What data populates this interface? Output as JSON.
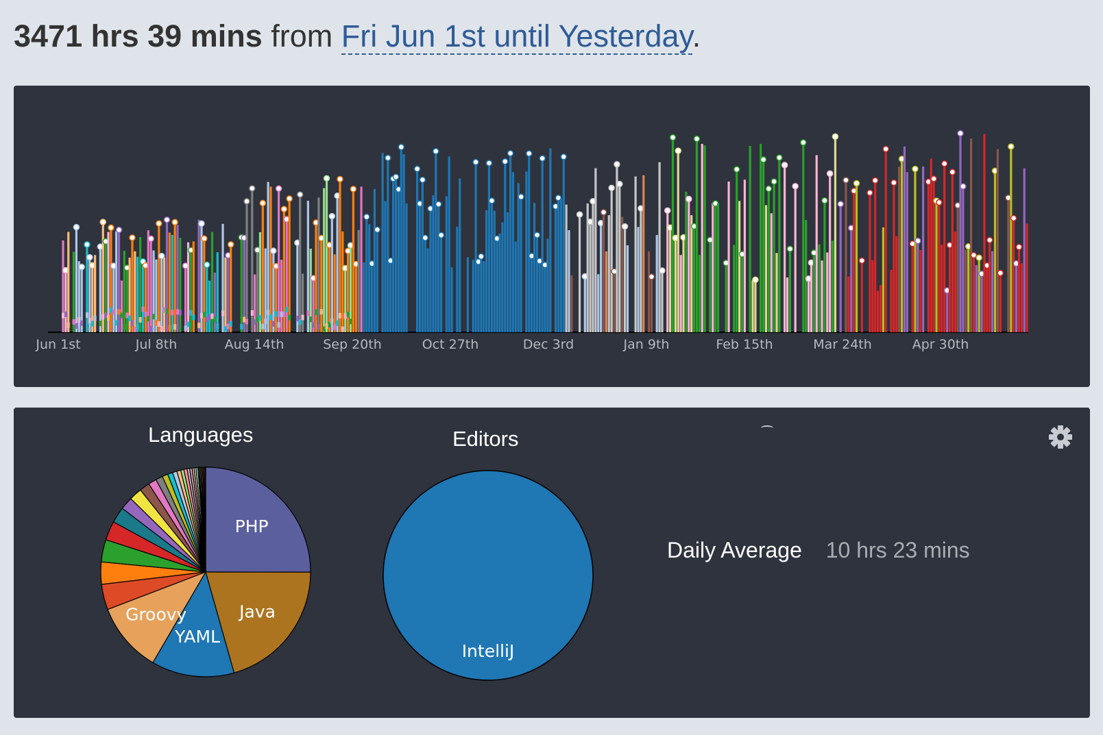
{
  "header": {
    "total": "3471 hrs 39 mins",
    "from_word": "from",
    "range_link": "Fri Jun 1st until Yesterday",
    "period": "."
  },
  "timeline": {
    "x_ticks": [
      "Jun 1st",
      "Jul 8th",
      "Aug 14th",
      "Sep 20th",
      "Oct 27th",
      "Dec 3rd",
      "Jan 9th",
      "Feb 15th",
      "Mar 24th",
      "Apr 30th"
    ],
    "colors": {
      "phase1": [
        "#17becf",
        "#ffbb78",
        "#e377c2",
        "#aec7e8",
        "#ff7f0e",
        "#2ca02c",
        "#9467bd",
        "#f7b6d2"
      ],
      "phase2": [
        "#7f7f7f",
        "#e377c2",
        "#aec7e8",
        "#98df8a",
        "#ff7f0e"
      ],
      "phase3": [
        "#1f77b4"
      ],
      "phase4": [
        "#aec7e8",
        "#dd8452",
        "#c7c7c7",
        "#8c564b"
      ],
      "phase5": [
        "#f7b6d2",
        "#2ca02c",
        "#dbdb8d",
        "#2ca02c"
      ],
      "phase6": [
        "#9467bd",
        "#8c564b",
        "#bcbd22",
        "#d62728",
        "#d62728"
      ]
    }
  },
  "languages": {
    "title": "Languages",
    "slices": [
      {
        "label": "PHP",
        "value": 0.255,
        "color": "#5c5f9e"
      },
      {
        "label": "Java",
        "value": 0.21,
        "color": "#ad741f"
      },
      {
        "label": "YAML",
        "value": 0.13,
        "color": "#1f77b4"
      },
      {
        "label": "Groovy",
        "value": 0.11,
        "color": "#e6a15b"
      },
      {
        "label": "",
        "value": 0.04,
        "color": "#dd4a26"
      },
      {
        "label": "",
        "value": 0.035,
        "color": "#ff7f0e"
      },
      {
        "label": "",
        "value": 0.035,
        "color": "#2ca02c"
      },
      {
        "label": "",
        "value": 0.03,
        "color": "#d62728"
      },
      {
        "label": "",
        "value": 0.025,
        "color": "#1a7a8a"
      },
      {
        "label": "",
        "value": 0.02,
        "color": "#9467bd"
      },
      {
        "label": "",
        "value": 0.02,
        "color": "#f0e442"
      },
      {
        "label": "",
        "value": 0.016,
        "color": "#8c564b"
      },
      {
        "label": "",
        "value": 0.013,
        "color": "#e377c2"
      },
      {
        "label": "",
        "value": 0.011,
        "color": "#7f7f7f"
      },
      {
        "label": "",
        "value": 0.009,
        "color": "#bcbd22"
      },
      {
        "label": "",
        "value": 0.008,
        "color": "#17becf"
      },
      {
        "label": "",
        "value": 0.007,
        "color": "#aec7e8"
      },
      {
        "label": "",
        "value": 0.006,
        "color": "#ffbb78"
      },
      {
        "label": "",
        "value": 0.005,
        "color": "#98df8a"
      },
      {
        "label": "",
        "value": 0.005,
        "color": "#ff9896"
      },
      {
        "label": "",
        "value": 0.004,
        "color": "#c5b0d5"
      },
      {
        "label": "",
        "value": 0.004,
        "color": "#c49c94"
      },
      {
        "label": "",
        "value": 0.003,
        "color": "#f7b6d2"
      },
      {
        "label": "",
        "value": 0.003,
        "color": "#dbdb8d"
      },
      {
        "label": "",
        "value": 0.003,
        "color": "#9edae5"
      },
      {
        "label": "",
        "value": 0.002,
        "color": "#393b79"
      },
      {
        "label": "",
        "value": 0.002,
        "color": "#637939"
      },
      {
        "label": "",
        "value": 0.002,
        "color": "#8c6d31"
      },
      {
        "label": "",
        "value": 0.002,
        "color": "#843c39"
      },
      {
        "label": "",
        "value": 0.002,
        "color": "#7b4173"
      },
      {
        "label": "",
        "value": 0.002,
        "color": "#222222"
      }
    ]
  },
  "editors": {
    "title": "Editors",
    "slices": [
      {
        "label": "IntelliJ",
        "value": 1.0,
        "color": "#1f77b4"
      }
    ]
  },
  "daily_average": {
    "label": "Daily Average",
    "value": "10 hrs 23 mins"
  },
  "settings_icon": "gear-icon"
}
